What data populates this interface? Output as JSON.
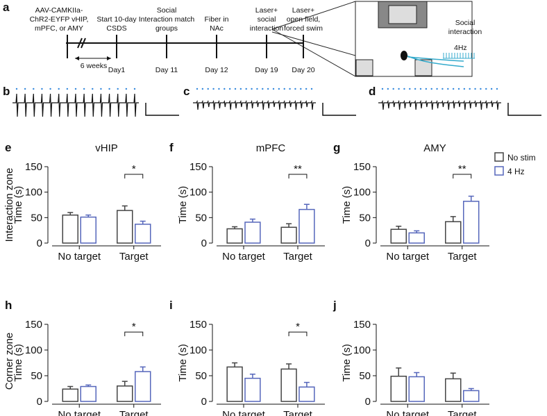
{
  "timeline": {
    "panel": "a",
    "events": [
      {
        "lines": [
          "AAV-CAMKIIa-",
          "ChR2-EYFP vHIP,",
          "mPFC, or AMY"
        ]
      },
      {
        "lines": [
          "Start 10-day",
          "CSDS"
        ],
        "day": "Day1"
      },
      {
        "lines": [
          "Social",
          "Interaction match",
          "groups"
        ],
        "day": "Day 11"
      },
      {
        "lines": [
          "Fiber in",
          "NAc"
        ],
        "day": "Day 12"
      },
      {
        "lines": [
          "Laser+",
          "social",
          "interaction"
        ],
        "day": "Day 19"
      },
      {
        "lines": [
          "Laser+",
          "open field,",
          "forced swim"
        ],
        "day": "Day 20"
      }
    ],
    "interval": "6 weeks",
    "arena_label": [
      "Social",
      "interaction"
    ],
    "stim_label": "4Hz"
  },
  "traces": [
    "b",
    "c",
    "d"
  ],
  "row_labels": [
    "Interaction zone",
    "Corner zone"
  ],
  "chart_data": [
    {
      "type": "bar",
      "panel": "e",
      "title": "vHIP",
      "y_label": "Time (s)",
      "categories": [
        "No target",
        "Target"
      ],
      "ylim": [
        0,
        150
      ],
      "yticks": [
        0,
        50,
        100,
        150
      ],
      "series": [
        {
          "color": "#444444",
          "values": [
            55,
            64
          ],
          "errors": [
            5,
            9
          ]
        },
        {
          "color": "#5566bb",
          "values": [
            51,
            37
          ],
          "errors": [
            4,
            6
          ]
        }
      ],
      "annotation": "*"
    },
    {
      "type": "bar",
      "panel": "f",
      "title": "mPFC",
      "y_label": "Time (s)",
      "categories": [
        "No target",
        "Target"
      ],
      "ylim": [
        0,
        150
      ],
      "yticks": [
        0,
        50,
        100,
        150
      ],
      "series": [
        {
          "color": "#444444",
          "values": [
            28,
            31
          ],
          "errors": [
            4,
            7
          ]
        },
        {
          "color": "#5566bb",
          "values": [
            41,
            66
          ],
          "errors": [
            6,
            10
          ]
        }
      ],
      "annotation": "**"
    },
    {
      "type": "bar",
      "panel": "g",
      "title": "AMY",
      "y_label": "Time (s)",
      "categories": [
        "No target",
        "Target"
      ],
      "ylim": [
        0,
        150
      ],
      "yticks": [
        0,
        50,
        100,
        150
      ],
      "legend": "upper right",
      "series": [
        {
          "name": "No stim",
          "color": "#444444",
          "values": [
            27,
            42
          ],
          "errors": [
            6,
            10
          ]
        },
        {
          "name": "4 Hz",
          "color": "#5566bb",
          "values": [
            20,
            82
          ],
          "errors": [
            4,
            10
          ]
        }
      ],
      "annotation": "**"
    },
    {
      "type": "bar",
      "panel": "h",
      "y_label": "Time (s)",
      "categories": [
        "No target",
        "Target"
      ],
      "ylim": [
        0,
        150
      ],
      "yticks": [
        0,
        50,
        100,
        150
      ],
      "series": [
        {
          "color": "#444444",
          "values": [
            24,
            30
          ],
          "errors": [
            5,
            9
          ]
        },
        {
          "color": "#5566bb",
          "values": [
            29,
            58
          ],
          "errors": [
            3,
            9
          ]
        }
      ],
      "annotation": "*"
    },
    {
      "type": "bar",
      "panel": "i",
      "y_label": "Time (s)",
      "categories": [
        "No target",
        "Target"
      ],
      "ylim": [
        0,
        150
      ],
      "yticks": [
        0,
        50,
        100,
        150
      ],
      "series": [
        {
          "color": "#444444",
          "values": [
            67,
            63
          ],
          "errors": [
            8,
            10
          ]
        },
        {
          "color": "#5566bb",
          "values": [
            45,
            28
          ],
          "errors": [
            8,
            9
          ]
        }
      ],
      "annotation": "*"
    },
    {
      "type": "bar",
      "panel": "j",
      "y_label": "Time (s)",
      "categories": [
        "No target",
        "Target"
      ],
      "ylim": [
        0,
        150
      ],
      "yticks": [
        0,
        50,
        100,
        150
      ],
      "series": [
        {
          "color": "#444444",
          "values": [
            49,
            44
          ],
          "errors": [
            16,
            11
          ]
        },
        {
          "color": "#5566bb",
          "values": [
            48,
            21
          ],
          "errors": [
            8,
            4
          ]
        }
      ]
    }
  ]
}
